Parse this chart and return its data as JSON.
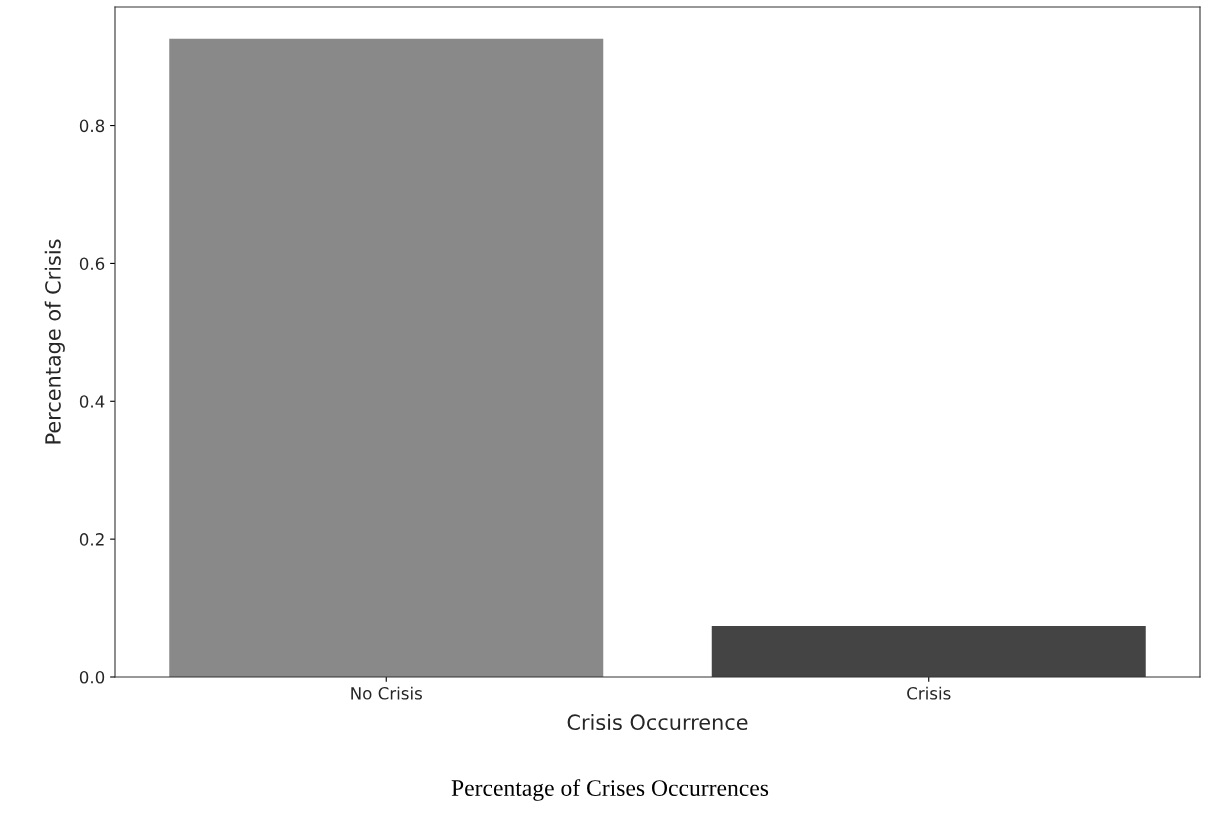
{
  "chart_data": {
    "type": "bar",
    "xlabel": "Crisis Occurrence",
    "ylabel": "Percentage of Crisis",
    "categories": [
      "No Crisis",
      "Crisis"
    ],
    "values": [
      0.926,
      0.074
    ],
    "colors": [
      "#898989",
      "#444444"
    ],
    "ylim": [
      0,
      0.972
    ],
    "yticks": [
      {
        "value": 0,
        "label": "0.0"
      },
      0.2,
      0.4,
      0.6,
      0.8
    ],
    "annotations": [
      "Percentage of Crises Occurrences"
    ],
    "grid": false
  }
}
